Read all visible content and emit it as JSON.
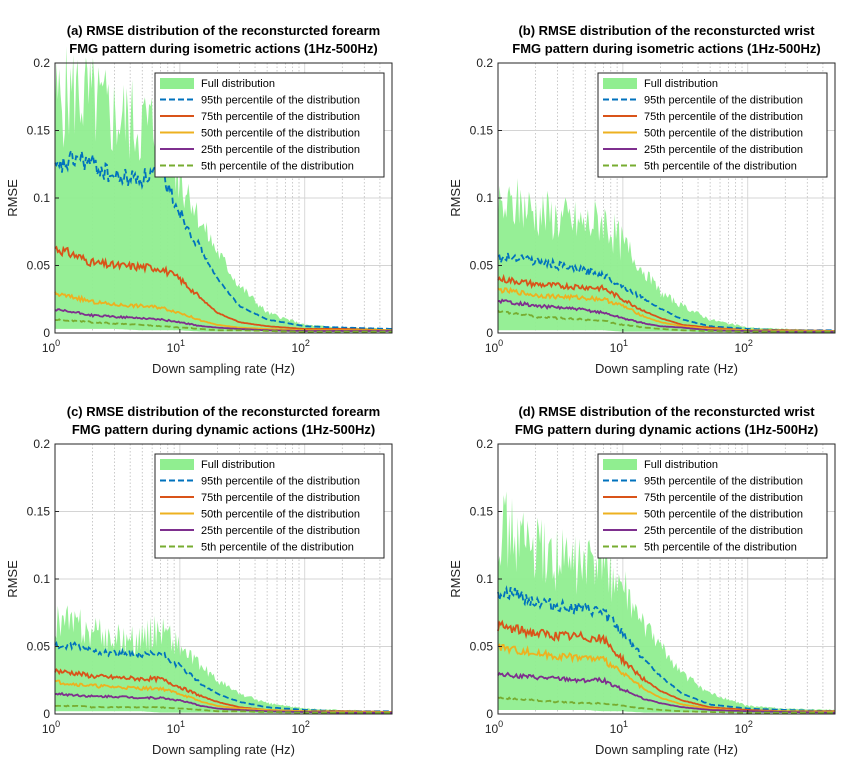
{
  "chart_data": [
    {
      "type": "area",
      "title_lines": [
        "(a) RMSE distribution of the reconsturcted forearm",
        "FMG pattern during isometric actions (1Hz-500Hz)"
      ],
      "xlabel": "Down sampling rate (Hz)",
      "ylabel": "RMSE",
      "xscale": "log",
      "xlim": [
        1,
        500
      ],
      "ylim": [
        0,
        0.2
      ],
      "legend_position": "top-right",
      "x_tick_labels": [
        {
          "base": "10",
          "exp": "0"
        },
        {
          "base": "10",
          "exp": "1"
        },
        {
          "base": "10",
          "exp": "2"
        }
      ],
      "y_tick_labels": [
        "0",
        "0.05",
        "0.1",
        "0.15",
        "0.2"
      ],
      "x": [
        1,
        1.5,
        2,
        3,
        5,
        7,
        10,
        15,
        20,
        30,
        50,
        100,
        200,
        500
      ],
      "series": [
        {
          "name": "Full distribution",
          "style": "band",
          "color": "#90ee90",
          "lower": [
            0.003,
            0.003,
            0.003,
            0.003,
            0.002,
            0.002,
            0.002,
            0.001,
            0.001,
            0.001,
            0.001,
            0.0005,
            0.0005,
            0.0005
          ],
          "upper": [
            0.17,
            0.18,
            0.17,
            0.16,
            0.155,
            0.15,
            0.12,
            0.08,
            0.06,
            0.035,
            0.015,
            0.006,
            0.004,
            0.003
          ]
        },
        {
          "name": "95th percentile of the distribution",
          "style": "dashed",
          "color": "#0072bd",
          "values": [
            0.12,
            0.13,
            0.125,
            0.115,
            0.115,
            0.12,
            0.09,
            0.06,
            0.04,
            0.02,
            0.01,
            0.005,
            0.004,
            0.003
          ]
        },
        {
          "name": "75th percentile of the distribution",
          "style": "solid",
          "color": "#d95319",
          "values": [
            0.063,
            0.057,
            0.052,
            0.05,
            0.049,
            0.048,
            0.04,
            0.025,
            0.015,
            0.008,
            0.005,
            0.003,
            0.003,
            0.002
          ]
        },
        {
          "name": "50th percentile of the distribution",
          "style": "solid",
          "color": "#edb120",
          "values": [
            0.029,
            0.026,
            0.023,
            0.021,
            0.02,
            0.019,
            0.015,
            0.009,
            0.006,
            0.004,
            0.003,
            0.002,
            0.002,
            0.002
          ]
        },
        {
          "name": "25th percentile of the distribution",
          "style": "solid",
          "color": "#7e2f8e",
          "values": [
            0.017,
            0.015,
            0.013,
            0.012,
            0.011,
            0.01,
            0.008,
            0.005,
            0.004,
            0.003,
            0.002,
            0.0015,
            0.0015,
            0.0015
          ]
        },
        {
          "name": "5th percentile of the distribution",
          "style": "dashed",
          "color": "#77ac30",
          "values": [
            0.01,
            0.009,
            0.008,
            0.007,
            0.006,
            0.005,
            0.004,
            0.003,
            0.002,
            0.002,
            0.0015,
            0.001,
            0.001,
            0.001
          ]
        }
      ]
    },
    {
      "type": "area",
      "title_lines": [
        "(b) RMSE distribution of the reconsturcted wrist",
        "FMG pattern during isometric actions (1Hz-500Hz)"
      ],
      "xlabel": "Down sampling rate (Hz)",
      "ylabel": "RMSE",
      "xscale": "log",
      "xlim": [
        1,
        500
      ],
      "ylim": [
        0,
        0.2
      ],
      "legend_position": "top-right",
      "x_tick_labels": [
        {
          "base": "10",
          "exp": "0"
        },
        {
          "base": "10",
          "exp": "1"
        },
        {
          "base": "10",
          "exp": "2"
        }
      ],
      "y_tick_labels": [
        "0",
        "0.05",
        "0.1",
        "0.15",
        "0.2"
      ],
      "x": [
        1,
        1.5,
        2,
        3,
        5,
        7,
        10,
        15,
        20,
        30,
        50,
        100,
        200,
        500
      ],
      "series": [
        {
          "name": "Full distribution",
          "style": "band",
          "color": "#90ee90",
          "lower": [
            0.002,
            0.002,
            0.002,
            0.002,
            0.002,
            0.002,
            0.001,
            0.001,
            0.001,
            0.001,
            0.0005,
            0.0005,
            0.0005,
            0.0005
          ],
          "upper": [
            0.09,
            0.095,
            0.09,
            0.085,
            0.08,
            0.085,
            0.065,
            0.045,
            0.03,
            0.02,
            0.01,
            0.004,
            0.003,
            0.002
          ]
        },
        {
          "name": "95th percentile of the distribution",
          "style": "dashed",
          "color": "#0072bd",
          "values": [
            0.055,
            0.057,
            0.053,
            0.05,
            0.046,
            0.043,
            0.035,
            0.025,
            0.018,
            0.01,
            0.005,
            0.003,
            0.002,
            0.002
          ]
        },
        {
          "name": "75th percentile of the distribution",
          "style": "solid",
          "color": "#d95319",
          "values": [
            0.04,
            0.038,
            0.036,
            0.035,
            0.034,
            0.033,
            0.025,
            0.016,
            0.011,
            0.006,
            0.004,
            0.002,
            0.002,
            0.0015
          ]
        },
        {
          "name": "50th percentile of the distribution",
          "style": "solid",
          "color": "#edb120",
          "values": [
            0.032,
            0.03,
            0.028,
            0.027,
            0.026,
            0.025,
            0.02,
            0.012,
            0.008,
            0.005,
            0.003,
            0.002,
            0.0015,
            0.0015
          ]
        },
        {
          "name": "25th percentile of the distribution",
          "style": "solid",
          "color": "#7e2f8e",
          "values": [
            0.024,
            0.022,
            0.02,
            0.019,
            0.017,
            0.015,
            0.011,
            0.007,
            0.005,
            0.004,
            0.002,
            0.0015,
            0.001,
            0.001
          ]
        },
        {
          "name": "5th percentile of the distribution",
          "style": "dashed",
          "color": "#77ac30",
          "values": [
            0.016,
            0.014,
            0.012,
            0.011,
            0.01,
            0.009,
            0.006,
            0.004,
            0.003,
            0.002,
            0.0015,
            0.001,
            0.001,
            0.001
          ]
        }
      ]
    },
    {
      "type": "area",
      "title_lines": [
        "(c) RMSE distribution of the reconsturcted forearm",
        "FMG pattern during dynamic actions (1Hz-500Hz)"
      ],
      "xlabel": "Down sampling rate (Hz)",
      "ylabel": "RMSE",
      "xscale": "log",
      "xlim": [
        1,
        500
      ],
      "ylim": [
        0,
        0.2
      ],
      "legend_position": "top-right",
      "x_tick_labels": [
        {
          "base": "10",
          "exp": "0"
        },
        {
          "base": "10",
          "exp": "1"
        },
        {
          "base": "10",
          "exp": "2"
        }
      ],
      "y_tick_labels": [
        "0",
        "0.05",
        "0.1",
        "0.15",
        "0.2"
      ],
      "x": [
        1,
        1.5,
        2,
        3,
        5,
        7,
        10,
        15,
        20,
        30,
        50,
        100,
        200,
        500
      ],
      "series": [
        {
          "name": "Full distribution",
          "style": "band",
          "color": "#90ee90",
          "lower": [
            0.002,
            0.002,
            0.002,
            0.002,
            0.002,
            0.001,
            0.001,
            0.001,
            0.001,
            0.001,
            0.0005,
            0.0005,
            0.0005,
            0.0005
          ],
          "upper": [
            0.07,
            0.065,
            0.06,
            0.055,
            0.055,
            0.065,
            0.05,
            0.035,
            0.025,
            0.015,
            0.008,
            0.004,
            0.003,
            0.002
          ]
        },
        {
          "name": "95th percentile of the distribution",
          "style": "dashed",
          "color": "#0072bd",
          "values": [
            0.05,
            0.05,
            0.047,
            0.045,
            0.043,
            0.045,
            0.035,
            0.022,
            0.015,
            0.009,
            0.005,
            0.003,
            0.002,
            0.002
          ]
        },
        {
          "name": "75th percentile of the distribution",
          "style": "solid",
          "color": "#d95319",
          "values": [
            0.032,
            0.03,
            0.028,
            0.027,
            0.026,
            0.026,
            0.02,
            0.013,
            0.009,
            0.005,
            0.003,
            0.002,
            0.002,
            0.0015
          ]
        },
        {
          "name": "50th percentile of the distribution",
          "style": "solid",
          "color": "#edb120",
          "values": [
            0.024,
            0.022,
            0.021,
            0.02,
            0.019,
            0.019,
            0.015,
            0.009,
            0.006,
            0.004,
            0.003,
            0.002,
            0.0015,
            0.0015
          ]
        },
        {
          "name": "25th percentile of the distribution",
          "style": "solid",
          "color": "#7e2f8e",
          "values": [
            0.015,
            0.014,
            0.013,
            0.013,
            0.012,
            0.012,
            0.01,
            0.006,
            0.004,
            0.003,
            0.002,
            0.0015,
            0.001,
            0.001
          ]
        },
        {
          "name": "5th percentile of the distribution",
          "style": "dashed",
          "color": "#77ac30",
          "values": [
            0.006,
            0.006,
            0.005,
            0.005,
            0.005,
            0.005,
            0.004,
            0.003,
            0.002,
            0.002,
            0.0015,
            0.001,
            0.001,
            0.001
          ]
        }
      ]
    },
    {
      "type": "area",
      "title_lines": [
        "(d) RMSE distribution of the reconsturcted wrist",
        "FMG pattern during dynamic actions (1Hz-500Hz)"
      ],
      "xlabel": "Down sampling rate (Hz)",
      "ylabel": "RMSE",
      "xscale": "log",
      "xlim": [
        1,
        500
      ],
      "ylim": [
        0,
        0.2
      ],
      "legend_position": "top-right",
      "x_tick_labels": [
        {
          "base": "10",
          "exp": "0"
        },
        {
          "base": "10",
          "exp": "1"
        },
        {
          "base": "10",
          "exp": "2"
        }
      ],
      "y_tick_labels": [
        "0",
        "0.05",
        "0.1",
        "0.15",
        "0.2"
      ],
      "x": [
        1,
        1.5,
        2,
        3,
        5,
        7,
        10,
        15,
        20,
        30,
        50,
        100,
        200,
        500
      ],
      "series": [
        {
          "name": "Full distribution",
          "style": "band",
          "color": "#90ee90",
          "lower": [
            0.003,
            0.003,
            0.003,
            0.003,
            0.003,
            0.002,
            0.002,
            0.001,
            0.001,
            0.001,
            0.001,
            0.0005,
            0.0005,
            0.0005
          ],
          "upper": [
            0.14,
            0.13,
            0.12,
            0.115,
            0.11,
            0.115,
            0.09,
            0.065,
            0.05,
            0.03,
            0.015,
            0.006,
            0.004,
            0.003
          ]
        },
        {
          "name": "95th percentile of the distribution",
          "style": "dashed",
          "color": "#0072bd",
          "values": [
            0.09,
            0.088,
            0.083,
            0.08,
            0.077,
            0.075,
            0.06,
            0.04,
            0.028,
            0.015,
            0.007,
            0.004,
            0.003,
            0.002
          ]
        },
        {
          "name": "75th percentile of the distribution",
          "style": "solid",
          "color": "#d95319",
          "values": [
            0.065,
            0.062,
            0.06,
            0.058,
            0.057,
            0.055,
            0.04,
            0.025,
            0.017,
            0.01,
            0.005,
            0.003,
            0.002,
            0.002
          ]
        },
        {
          "name": "50th percentile of the distribution",
          "style": "solid",
          "color": "#edb120",
          "values": [
            0.05,
            0.047,
            0.045,
            0.043,
            0.042,
            0.04,
            0.03,
            0.018,
            0.012,
            0.007,
            0.004,
            0.002,
            0.002,
            0.0015
          ]
        },
        {
          "name": "25th percentile of the distribution",
          "style": "solid",
          "color": "#7e2f8e",
          "values": [
            0.03,
            0.028,
            0.027,
            0.026,
            0.025,
            0.025,
            0.018,
            0.011,
            0.008,
            0.005,
            0.003,
            0.002,
            0.0015,
            0.001
          ]
        },
        {
          "name": "5th percentile of the distribution",
          "style": "dashed",
          "color": "#77ac30",
          "values": [
            0.012,
            0.011,
            0.01,
            0.009,
            0.008,
            0.008,
            0.006,
            0.004,
            0.003,
            0.002,
            0.0015,
            0.001,
            0.001,
            0.001
          ]
        }
      ]
    }
  ]
}
